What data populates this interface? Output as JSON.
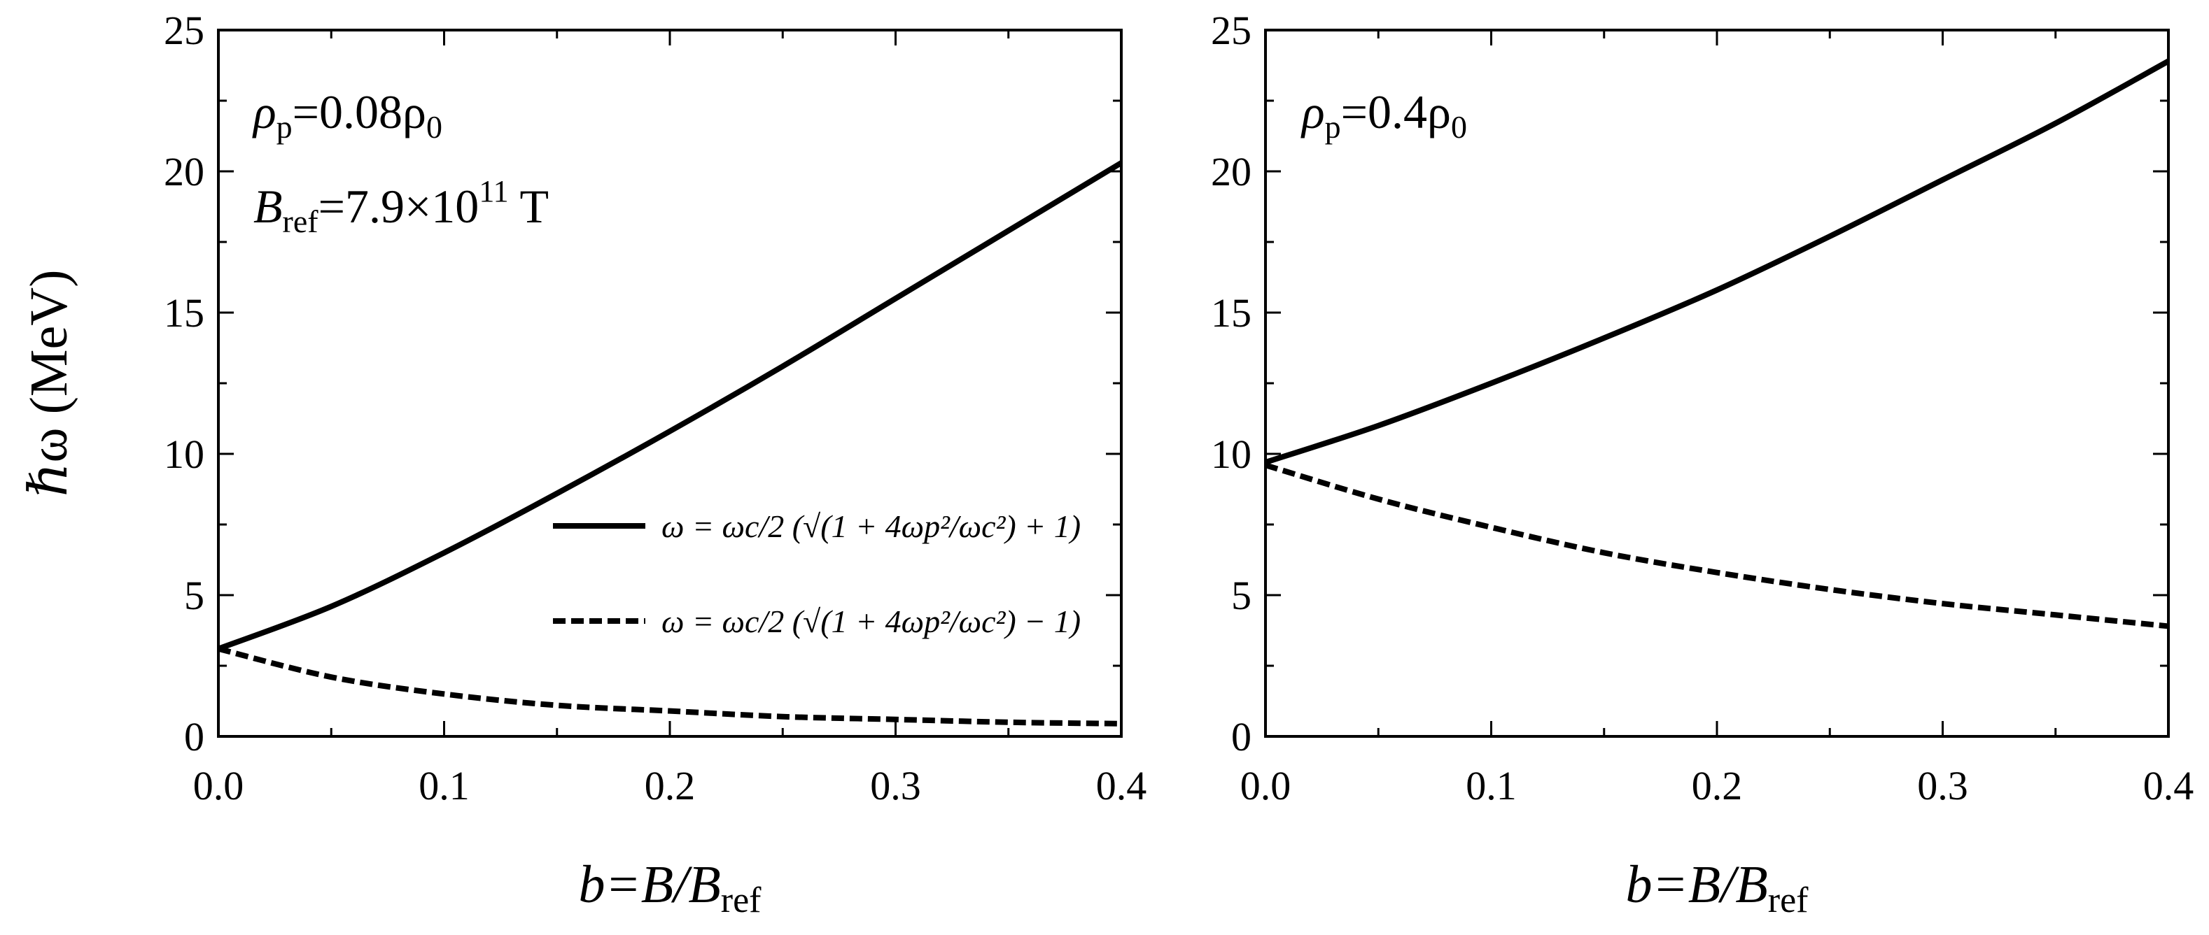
{
  "chart_data": [
    {
      "type": "line",
      "panel": "left",
      "xlabel": {
        "main": "b=B/B",
        "sub": "ref"
      },
      "ylabel": "ℏω (MeV)",
      "xlim": [
        0.0,
        0.4
      ],
      "ylim": [
        0,
        25
      ],
      "x_ticks": [
        "0.0",
        "0.1",
        "0.2",
        "0.3",
        "0.4"
      ],
      "y_ticks": [
        "0",
        "5",
        "10",
        "15",
        "20",
        "25"
      ],
      "grid": false,
      "annotations": [
        {
          "main": "ρ",
          "sub": "p",
          "rest": "=0.08ρ",
          "rest_sub": "0"
        },
        {
          "main": "B",
          "sub": "ref",
          "rest": "=7.9×10",
          "sup": "11",
          "tail": " T"
        }
      ],
      "legend": {
        "placement": "center-right",
        "entries": [
          {
            "style": "solid",
            "text": "ω = ωc/2 (√(1 + 4ωp²/ωc²) + 1)"
          },
          {
            "style": "dashed",
            "text": "ω = ωc/2 (√(1 + 4ωp²/ωc²) − 1)"
          }
        ]
      },
      "series": [
        {
          "style": "solid",
          "x": [
            0.0,
            0.05,
            0.1,
            0.15,
            0.2,
            0.25,
            0.3,
            0.35,
            0.4
          ],
          "y": [
            3.1,
            4.6,
            6.5,
            8.6,
            10.8,
            13.1,
            15.5,
            17.9,
            20.3
          ]
        },
        {
          "style": "dashed",
          "x": [
            0.0,
            0.05,
            0.1,
            0.15,
            0.2,
            0.25,
            0.3,
            0.35,
            0.4
          ],
          "y": [
            3.1,
            2.1,
            1.5,
            1.1,
            0.9,
            0.7,
            0.6,
            0.5,
            0.45
          ]
        }
      ]
    },
    {
      "type": "line",
      "panel": "right",
      "xlabel": {
        "main": "b=B/B",
        "sub": "ref"
      },
      "xlim": [
        0.0,
        0.4
      ],
      "ylim": [
        0,
        25
      ],
      "x_ticks": [
        "0.0",
        "0.1",
        "0.2",
        "0.3",
        "0.4"
      ],
      "y_ticks": [
        "0",
        "5",
        "10",
        "15",
        "20",
        "25"
      ],
      "grid": false,
      "annotations": [
        {
          "main": "ρ",
          "sub": "p",
          "rest": "=0.4ρ",
          "rest_sub": "0"
        }
      ],
      "series": [
        {
          "style": "solid",
          "x": [
            0.0,
            0.05,
            0.1,
            0.15,
            0.2,
            0.25,
            0.3,
            0.35,
            0.4
          ],
          "y": [
            9.7,
            11.0,
            12.5,
            14.1,
            15.8,
            17.7,
            19.7,
            21.7,
            23.9
          ]
        },
        {
          "style": "dashed",
          "x": [
            0.0,
            0.05,
            0.1,
            0.15,
            0.2,
            0.25,
            0.3,
            0.35,
            0.4
          ],
          "y": [
            9.6,
            8.4,
            7.4,
            6.5,
            5.8,
            5.2,
            4.7,
            4.3,
            3.9
          ]
        }
      ]
    }
  ]
}
